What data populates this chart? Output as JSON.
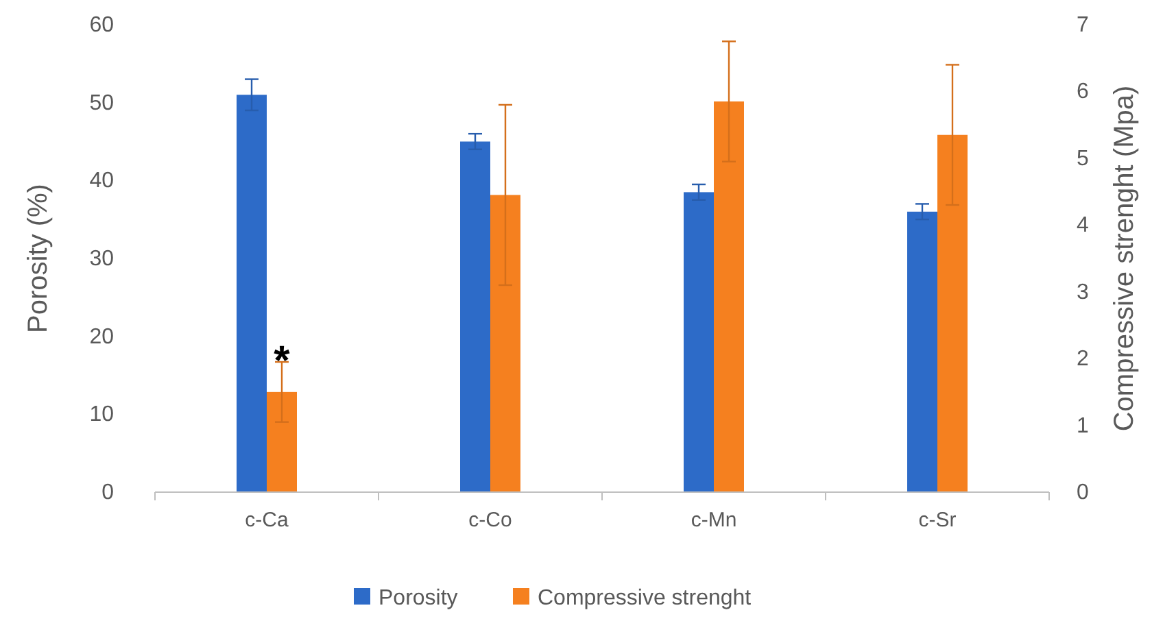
{
  "chart_data": {
    "type": "bar",
    "ylabel": "Porosity (%)",
    "y2label": "Compressive strenght (Mpa)",
    "categories": [
      "c-Ca",
      "c-Co",
      "c-Mn",
      "c-Sr"
    ],
    "series": [
      {
        "name": "Porosity",
        "color": "#2d6bc8",
        "values": [
          51,
          45,
          38.5,
          36
        ],
        "errors": [
          2,
          1,
          1,
          1
        ]
      },
      {
        "name": "Compressive strenght",
        "color": "#f5801f",
        "axis": "y2",
        "values": [
          1.5,
          4.45,
          5.85,
          5.35
        ],
        "errors": [
          0.45,
          1.35,
          0.9,
          1.05
        ]
      }
    ],
    "ylim": [
      0,
      60
    ],
    "yticks": [
      0,
      10,
      20,
      30,
      40,
      50,
      60
    ],
    "y2lim": [
      0,
      7
    ],
    "y2ticks": [
      0,
      1,
      2,
      3,
      4,
      5,
      6,
      7
    ],
    "annotations": [
      {
        "text": "*",
        "x": "c-Ca",
        "y": 2.05
      }
    ],
    "grid": false,
    "legend": "bottom"
  }
}
